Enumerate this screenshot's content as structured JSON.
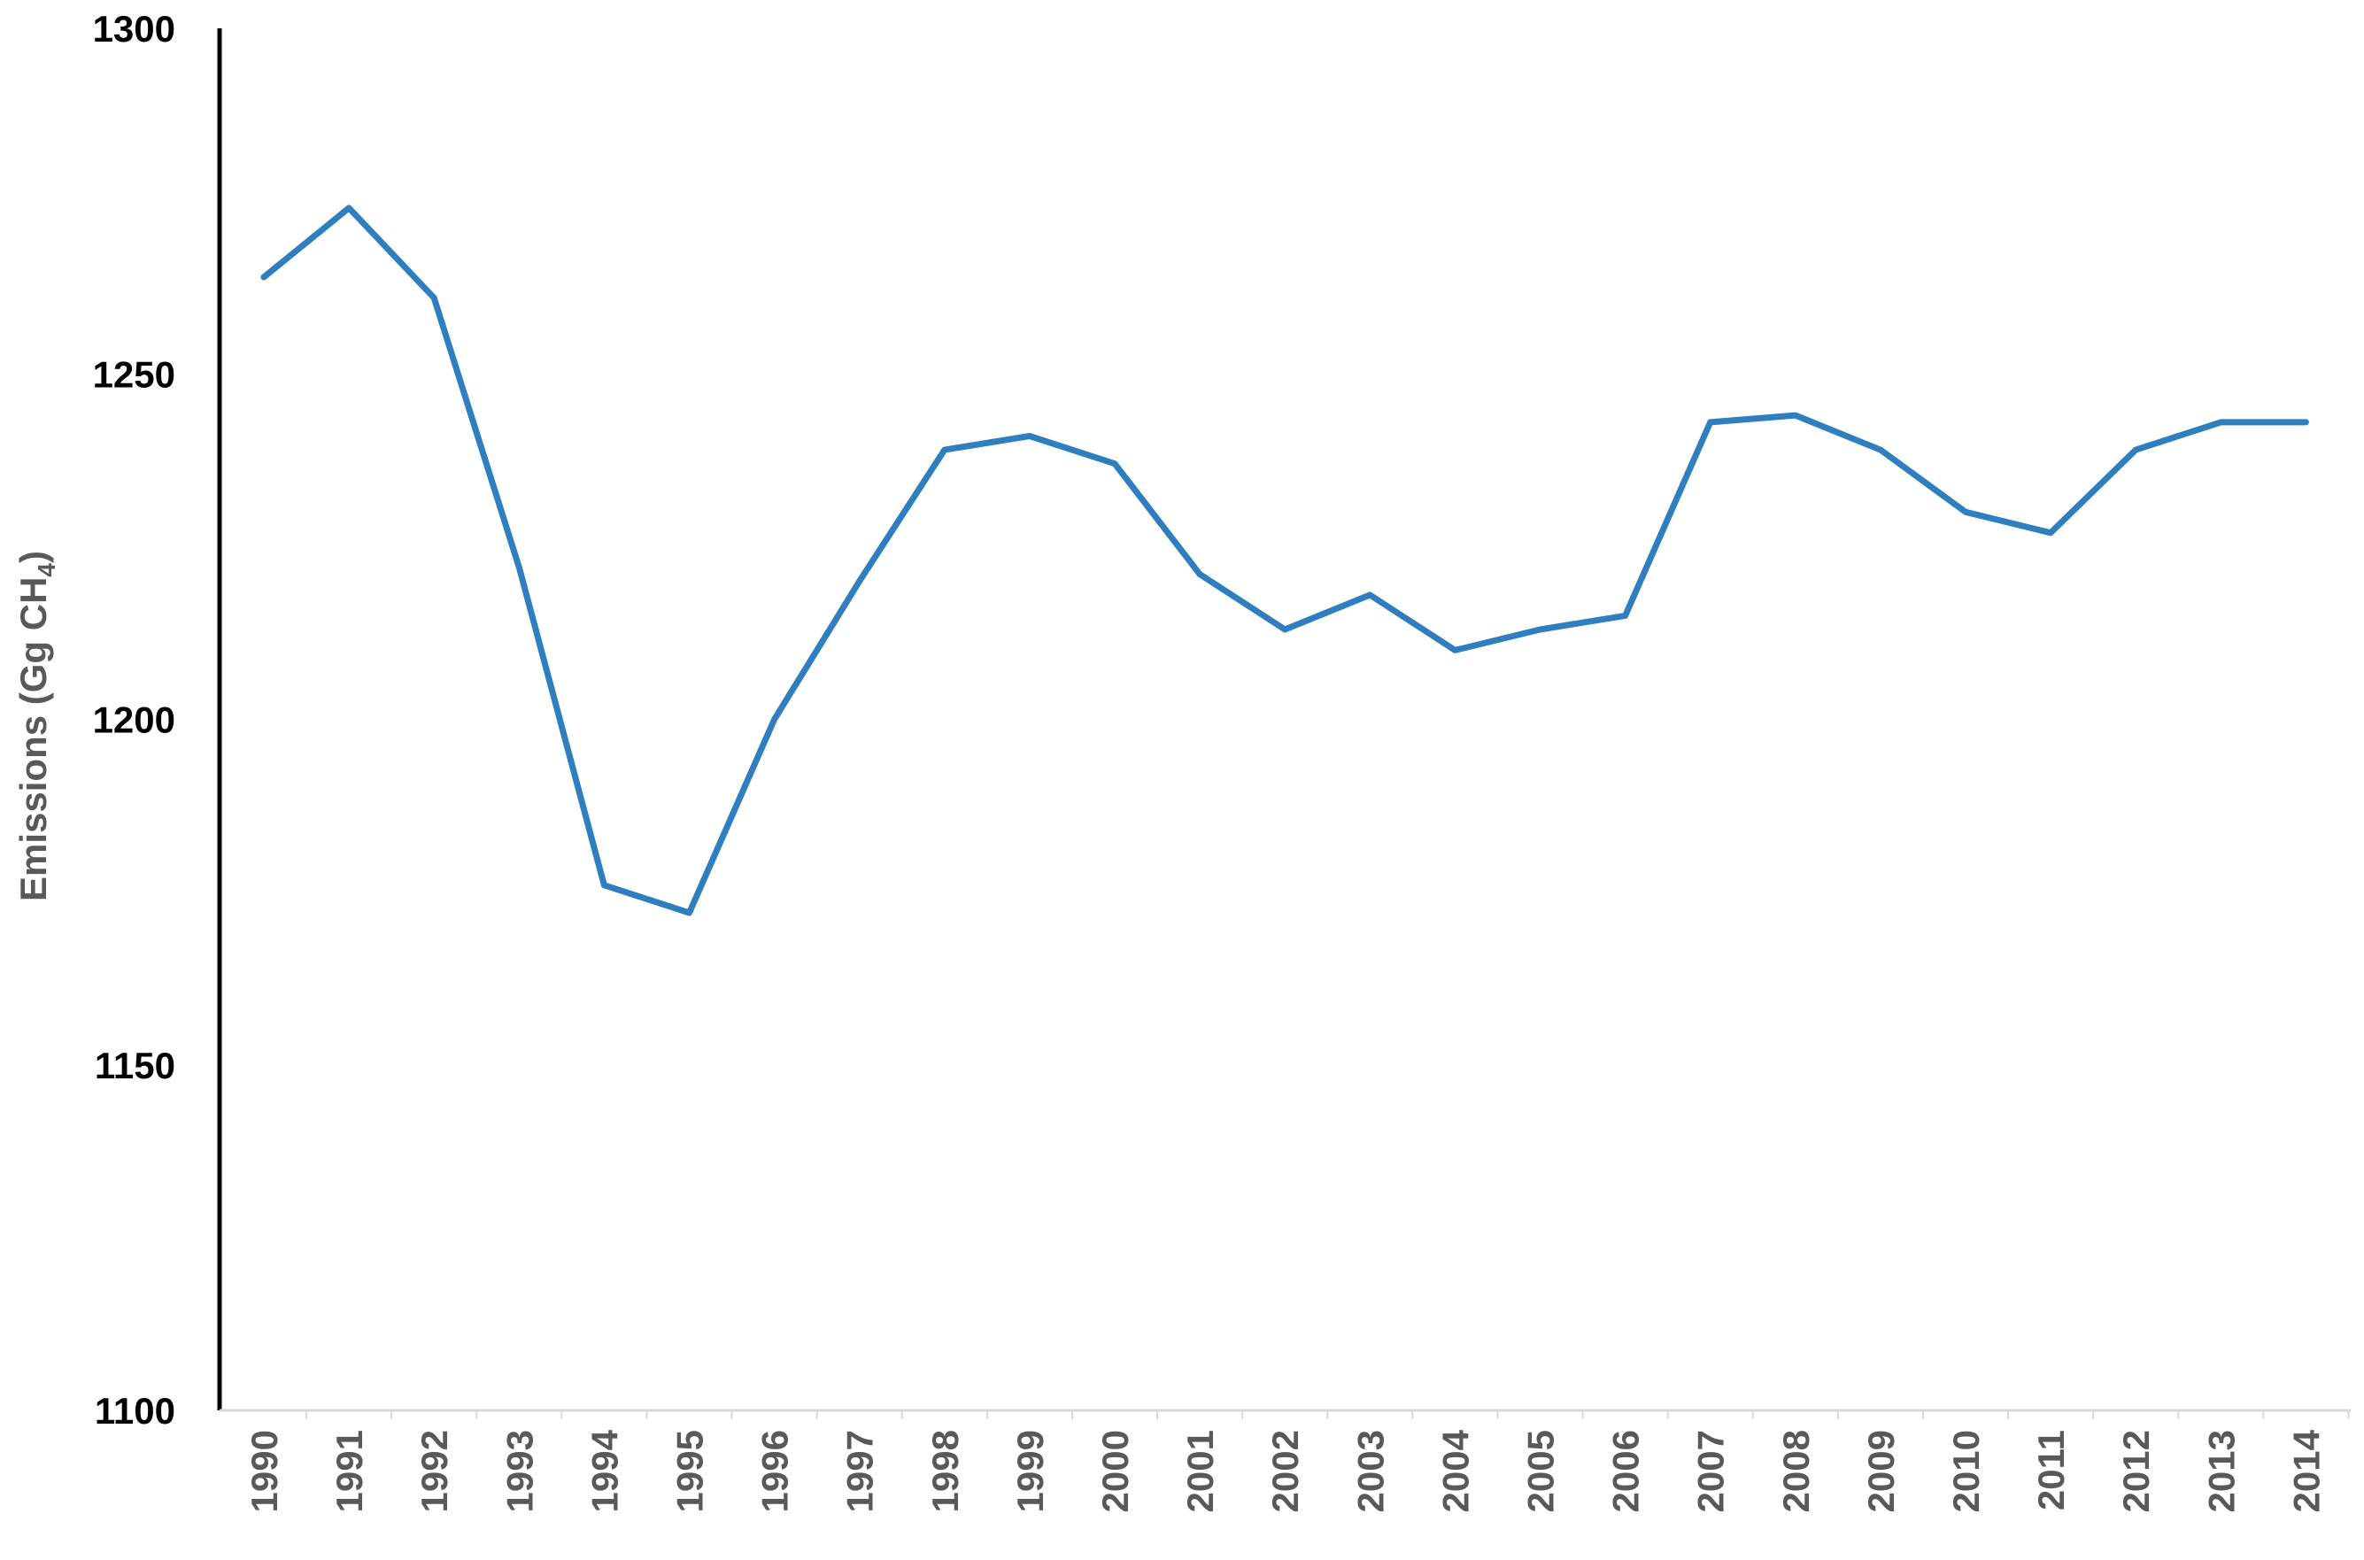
{
  "chart_data": {
    "type": "line",
    "title": "",
    "xlabel": "",
    "ylabel": "Emissions (Gg CH",
    "ylabel_sub": "4",
    "ylabel_close": ")",
    "ylim": [
      1100,
      1300
    ],
    "yticks": [
      1100,
      1150,
      1200,
      1250,
      1300
    ],
    "grid": false,
    "legend": "none",
    "line_color": "#2E7EC0",
    "categories": [
      "1990",
      "1991",
      "1992",
      "1993",
      "1994",
      "1995",
      "1996",
      "1997",
      "1998",
      "1999",
      "2000",
      "2001",
      "2002",
      "2003",
      "2004",
      "2005",
      "2006",
      "2007",
      "2008",
      "2009",
      "2010",
      "2011",
      "2012",
      "2013",
      "2014"
    ],
    "values": [
      1264,
      1274,
      1261,
      1222,
      1176,
      1172,
      1200,
      1220,
      1239,
      1241,
      1237,
      1221,
      1213,
      1218,
      1210,
      1213,
      1215,
      1243,
      1244,
      1239,
      1230,
      1227,
      1239,
      1243,
      1243
    ]
  }
}
